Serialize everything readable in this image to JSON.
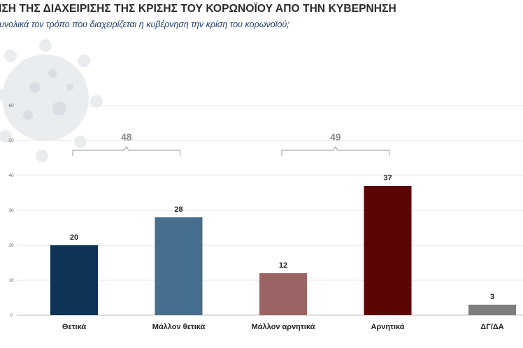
{
  "header": {
    "title": "ΙΣΗ ΤΗΣ ΔΙΑΧΕΙΡΙΣΗΣ ΤΗΣ ΚΡΙΣΗΣ ΤΟΥ ΚΟΡΩΝΟΪΟΥ ΑΠΟ ΤΗΝ ΚΥΒΕΡΝΗΣΗ",
    "subtitle": "υνολικά τον τρόπο που διαχειρίζεται η κυβέρνηση την κρίση του κορωνοϊού;"
  },
  "chart_data": {
    "type": "bar",
    "categories": [
      "Θετικά",
      "Μάλλον θετικά",
      "Μάλλον αρνητικά",
      "Αρνητικά",
      "ΔΓ/ΔΑ"
    ],
    "values": [
      20,
      28,
      12,
      37,
      3
    ],
    "colors": [
      "#0f3357",
      "#466e8f",
      "#9a6364",
      "#5c0505",
      "#7d7d7d"
    ],
    "ylim": [
      0,
      60
    ],
    "yticks": [
      "0",
      "10",
      "20",
      "30",
      "40",
      "50",
      "60"
    ],
    "grid": true,
    "brackets": [
      {
        "label": "48",
        "from": 0,
        "to": 1
      },
      {
        "label": "49",
        "from": 2,
        "to": 3
      }
    ]
  }
}
